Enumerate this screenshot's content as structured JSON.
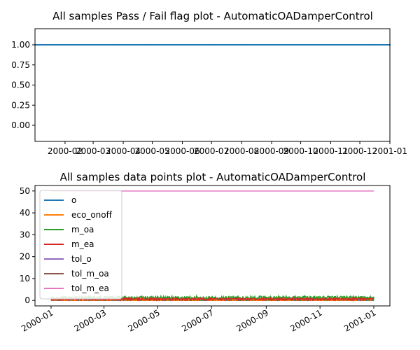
{
  "chart_data": [
    {
      "type": "line",
      "title": "All samples Pass / Fail flag plot - AutomaticOADamperControl",
      "xlabel": "",
      "ylabel": "",
      "ylim": [
        -0.2,
        1.2
      ],
      "xlim": [
        "2000-01-01",
        "2001-01-01"
      ],
      "y_ticks": [
        "0.00",
        "0.25",
        "0.50",
        "0.75",
        "1.00"
      ],
      "y_tick_values": [
        0,
        0.25,
        0.5,
        0.75,
        1.0
      ],
      "x_tick_labels": [
        "2000-02",
        "2000-03",
        "2000-04",
        "2000-05",
        "2000-06",
        "2000-07",
        "2000-08",
        "2000-09",
        "2000-10",
        "2000-11",
        "2000-12",
        "2001-01"
      ],
      "x_tick_dates": [
        "2000-02-01",
        "2000-03-01",
        "2000-04-01",
        "2000-05-01",
        "2000-06-01",
        "2000-07-01",
        "2000-08-01",
        "2000-09-01",
        "2000-10-01",
        "2000-11-01",
        "2000-12-01",
        "2001-01-01"
      ],
      "grid": false,
      "series": [
        {
          "color": "#1f77b4",
          "marker": "dot",
          "x_range": [
            "2000-01-01",
            "2001-01-01"
          ],
          "values_constant": 1.0
        }
      ]
    },
    {
      "type": "line",
      "title": "All samples data points plot - AutomaticOADamperControl",
      "xlabel": "",
      "ylabel": "",
      "ylim": [
        -2.5,
        52.5
      ],
      "xlim": [
        "2000-01-01",
        "2001-01-01"
      ],
      "y_ticks": [
        "0",
        "10",
        "20",
        "30",
        "40",
        "50"
      ],
      "y_tick_values": [
        0,
        10,
        20,
        30,
        40,
        50
      ],
      "x_tick_labels": [
        "2000-01",
        "2000-03",
        "2000-05",
        "2000-07",
        "2000-09",
        "2000-11",
        "2001-01"
      ],
      "x_tick_dates": [
        "2000-01-01",
        "2000-03-01",
        "2000-05-01",
        "2000-07-01",
        "2000-09-01",
        "2000-11-01",
        "2001-01-01"
      ],
      "grid": false,
      "legend_position": "upper-left",
      "series": [
        {
          "name": "o",
          "color": "#1f77b4"
        },
        {
          "name": "eco_onoff",
          "color": "#ff7f0e"
        },
        {
          "name": "m_oa",
          "color": "#2ca02c"
        },
        {
          "name": "m_ea",
          "color": "#d62728"
        },
        {
          "name": "tol_o",
          "color": "#9467bd"
        },
        {
          "name": "tol_m_oa",
          "color": "#8c564b"
        },
        {
          "name": "tol_m_ea",
          "color": "#e377c2"
        }
      ],
      "series_levels": {
        "o": [
          0,
          1
        ],
        "eco_onoff": [
          0,
          1
        ],
        "m_oa": [
          0.3,
          2.0
        ],
        "m_ea": [
          0.2,
          1.0
        ],
        "tol_o": 0,
        "tol_m_oa": 0,
        "tol_m_ea": 50
      }
    }
  ]
}
